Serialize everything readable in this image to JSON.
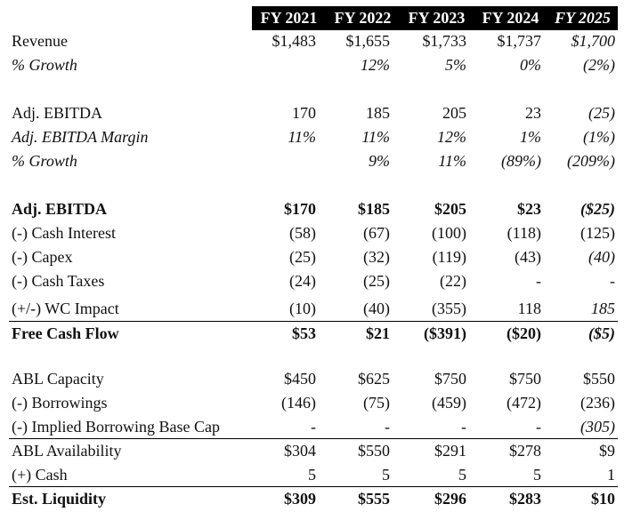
{
  "columns": [
    {
      "label": "FY 2021",
      "projected": false
    },
    {
      "label": "FY 2022",
      "projected": false
    },
    {
      "label": "FY 2023",
      "projected": false
    },
    {
      "label": "FY 2024",
      "projected": false
    },
    {
      "label": "FY 2025",
      "projected": true
    }
  ],
  "rows": {
    "revenue": {
      "label": "Revenue",
      "values": [
        "$1,483",
        "$1,655",
        "$1,733",
        "$1,737",
        "$1,700"
      ]
    },
    "revenue_growth": {
      "label": "% Growth",
      "values": [
        "",
        "12%",
        "5%",
        "0%",
        "(2%)"
      ]
    },
    "adj_ebitda": {
      "label": "Adj. EBITDA",
      "values": [
        "170",
        "185",
        "205",
        "23",
        "(25)"
      ]
    },
    "ebitda_margin": {
      "label": "Adj. EBITDA Margin",
      "values": [
        "11%",
        "11%",
        "12%",
        "1%",
        "(1%)"
      ]
    },
    "ebitda_growth": {
      "label": "% Growth",
      "values": [
        "",
        "9%",
        "11%",
        "(89%)",
        "(209%)"
      ]
    },
    "adj_ebitda_bold": {
      "label": "Adj. EBITDA",
      "values": [
        "$170",
        "$185",
        "$205",
        "$23",
        "($25)"
      ]
    },
    "cash_interest": {
      "label": "(-) Cash Interest",
      "values": [
        "(58)",
        "(67)",
        "(100)",
        "(118)",
        "(125)"
      ]
    },
    "capex": {
      "label": "(-) Capex",
      "values": [
        "(25)",
        "(32)",
        "(119)",
        "(43)",
        "(40)"
      ]
    },
    "cash_taxes": {
      "label": "(-) Cash Taxes",
      "values": [
        "(24)",
        "(25)",
        "(22)",
        "-",
        "-"
      ]
    },
    "wc_impact": {
      "label": "(+/-) WC Impact",
      "values": [
        "(10)",
        "(40)",
        "(355)",
        "118",
        "185"
      ]
    },
    "fcf": {
      "label": "Free Cash Flow",
      "values": [
        "$53",
        "$21",
        "($391)",
        "($20)",
        "($5)"
      ]
    },
    "abl_capacity": {
      "label": "ABL Capacity",
      "values": [
        "$450",
        "$625",
        "$750",
        "$750",
        "$550"
      ]
    },
    "borrowings": {
      "label": "(-) Borrowings",
      "values": [
        "(146)",
        "(75)",
        "(459)",
        "(472)",
        "(236)"
      ]
    },
    "implied_cap": {
      "label": "(-) Implied Borrowing Base Cap",
      "values": [
        "-",
        "-",
        "-",
        "-",
        "(305)"
      ]
    },
    "abl_availability": {
      "label": "ABL Availability",
      "values": [
        "$304",
        "$550",
        "$291",
        "$278",
        "$9"
      ]
    },
    "cash": {
      "label": "(+) Cash",
      "values": [
        "5",
        "5",
        "5",
        "5",
        "1"
      ]
    },
    "est_liquidity": {
      "label": "Est. Liquidity",
      "values": [
        "$309",
        "$555",
        "$296",
        "$283",
        "$10"
      ]
    }
  }
}
